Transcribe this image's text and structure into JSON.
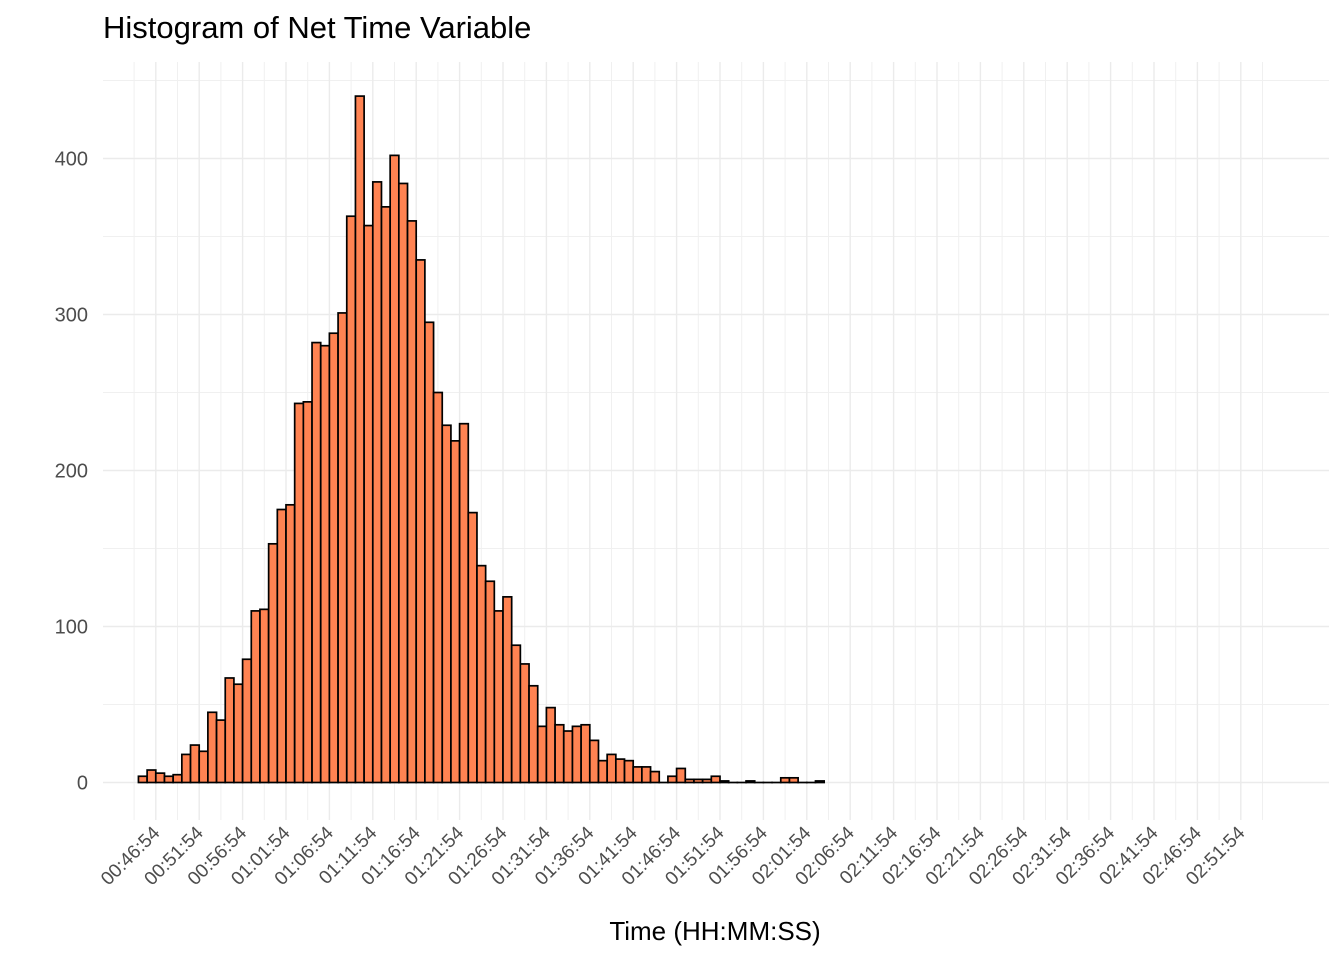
{
  "chart_data": {
    "type": "bar",
    "title": "Histogram of Net Time Variable",
    "xlabel": "Time (HH:MM:SS)",
    "ylabel": "",
    "ylim": [
      -25,
      460
    ],
    "y_ticks": [
      0,
      100,
      200,
      300,
      400
    ],
    "x_tick_labels": [
      "00:46:54",
      "00:51:54",
      "00:56:54",
      "01:01:54",
      "01:06:54",
      "01:11:54",
      "01:16:54",
      "01:21:54",
      "01:26:54",
      "01:31:54",
      "01:36:54",
      "01:41:54",
      "01:46:54",
      "01:51:54",
      "01:56:54",
      "02:01:54",
      "02:06:54",
      "02:11:54",
      "02:16:54",
      "02:21:54",
      "02:26:54",
      "02:31:54",
      "02:36:54",
      "02:41:54",
      "02:46:54",
      "02:51:54"
    ],
    "bin_width_minutes": 1,
    "first_bin_start": "00:44:54",
    "grid": true,
    "bar_fill": "#FF8352",
    "bar_stroke": "#000000",
    "values": [
      4,
      8,
      6,
      4,
      5,
      18,
      24,
      20,
      45,
      40,
      67,
      63,
      79,
      110,
      111,
      153,
      175,
      178,
      243,
      244,
      282,
      280,
      288,
      301,
      363,
      440,
      357,
      385,
      369,
      402,
      384,
      360,
      335,
      295,
      250,
      229,
      219,
      230,
      173,
      139,
      129,
      110,
      119,
      88,
      76,
      62,
      36,
      48,
      37,
      33,
      36,
      37,
      27,
      14,
      18,
      15,
      14,
      10,
      10,
      7,
      0,
      4,
      9,
      2,
      2,
      2,
      4,
      1,
      0,
      0,
      1,
      0,
      0,
      0,
      3,
      3,
      0,
      0,
      1
    ]
  }
}
